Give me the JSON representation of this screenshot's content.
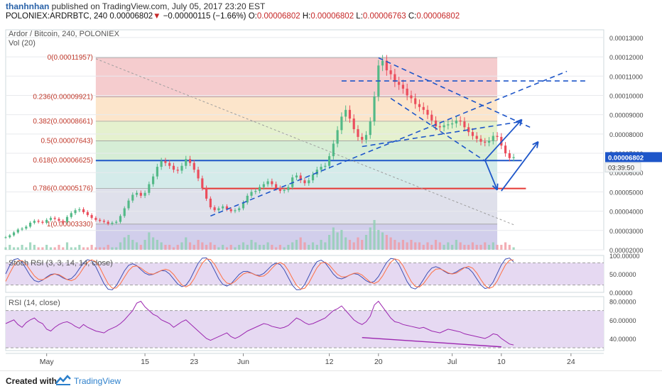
{
  "header": {
    "author": "thanhnhan",
    "published": "published on TradingView.com, July 05, 2017 23:20 EST",
    "symbol": "POLONIEX:ARDRBTC, 240",
    "last": "0.00006802",
    "down_arrow": "▼",
    "change": "−0.00000115 (−1.66%)",
    "o_label": "O:",
    "o_value": "0.00006802",
    "h_label": "H:",
    "h_value": "0.00006802",
    "l_label": "L:",
    "l_value": "0.00006763",
    "c_label": "C:",
    "c_value": "0.00006802"
  },
  "footer": {
    "created": "Created with",
    "brand": "TradingView"
  },
  "colors": {
    "up": "#53b987",
    "down": "#eb4d5c",
    "rsi": "#9c27b0",
    "stoch_k": "#3f51b5",
    "stoch_d": "#ff7043",
    "trend": "#1e56c9",
    "support": "#e53935",
    "price_tag": "#1e56c9"
  },
  "chart_data": [
    {
      "type": "candlestick",
      "title": "Ardor / Bitcoin, 240, POLONIEX",
      "indicator_label": "Vol (20)",
      "y_ticks": [
        "0.00013000",
        "0.00012000",
        "0.00011000",
        "0.00010000",
        "0.00009000",
        "0.00008000",
        "0.00007000",
        "0.00006000",
        "0.00005000",
        "0.00004000",
        "0.00003000",
        "0.00002000"
      ],
      "ylim": [
        2e-05,
        0.000134
      ],
      "price_label": "0.00006802",
      "countdown_label": "03:39:50",
      "x_ticks": [
        "May",
        "15",
        "23",
        "Jun",
        "12",
        "20",
        "Jul",
        "10",
        "24"
      ],
      "x_tick_index": [
        10,
        34,
        46,
        58,
        79,
        91,
        109,
        121,
        138
      ],
      "x_range": [
        0,
        146
      ],
      "fib_levels": [
        {
          "ratio": "0",
          "label": "0(0.00011957)",
          "price": 0.00011957
        },
        {
          "ratio": "0.236",
          "label": "0.236(0.00009921)",
          "price": 9.921e-05
        },
        {
          "ratio": "0.382",
          "label": "0.382(0.00008661)",
          "price": 8.661e-05
        },
        {
          "ratio": "0.5",
          "label": "0.5(0.00007643)",
          "price": 7.643e-05
        },
        {
          "ratio": "0.618",
          "label": "0.618(0.00006625)",
          "price": 6.625e-05
        },
        {
          "ratio": "0.786",
          "label": "0.786(0.00005176)",
          "price": 5.176e-05
        },
        {
          "ratio": "1",
          "label": "1(0.00003330)",
          "price": 3.33e-05
        }
      ],
      "price_series": [
        2.65e-05,
        2.75e-05,
        2.9e-05,
        3.05e-05,
        3.1e-05,
        3.2e-05,
        3.4e-05,
        3.5e-05,
        3.45e-05,
        3.4e-05,
        3.55e-05,
        3.65e-05,
        3.6e-05,
        3.5e-05,
        3.45e-05,
        3.7e-05,
        3.9e-05,
        4.05e-05,
        4.1e-05,
        3.95e-05,
        3.8e-05,
        3.65e-05,
        3.55e-05,
        3.5e-05,
        3.45e-05,
        3.35e-05,
        3.4e-05,
        3.45e-05,
        3.75e-05,
        4.15e-05,
        4.55e-05,
        4.85e-05,
        4.95e-05,
        4.8e-05,
        4.95e-05,
        5.4e-05,
        5.8e-05,
        6.3e-05,
        6.6e-05,
        6.5e-05,
        6.35e-05,
        6.15e-05,
        6.1e-05,
        6.35e-05,
        6.7e-05,
        6.5e-05,
        6.15e-05,
        5.7e-05,
        5.2e-05,
        4.65e-05,
        4.2e-05,
        4.05e-05,
        4.15e-05,
        4.25e-05,
        4.1e-05,
        4e-05,
        4.05e-05,
        4.15e-05,
        4.45e-05,
        4.8e-05,
        5e-05,
        5.05e-05,
        5.25e-05,
        5.4e-05,
        5.55e-05,
        5.4e-05,
        5.2e-05,
        5.05e-05,
        5.1e-05,
        5.25e-05,
        5.75e-05,
        5.85e-05,
        5.6e-05,
        5.45e-05,
        5.6e-05,
        5.9e-05,
        6.15e-05,
        6.3e-05,
        6.35e-05,
        6.85e-05,
        7.5e-05,
        8.2e-05,
        8.9e-05,
        9.25e-05,
        8.8e-05,
        8.25e-05,
        7.85e-05,
        7.7e-05,
        7.95e-05,
        8.65e-05,
        9.95e-05,
        0.0001155,
        0.000118,
        0.000113,
        0.000111,
        0.000107,
        0.0001055,
        0.0001035,
        0.0001,
        9.85e-05,
        9.55e-05,
        9.4e-05,
        9.25e-05,
        9e-05,
        8.7e-05,
        8.4e-05,
        8.35e-05,
        8.45e-05,
        8.5e-05,
        8.55e-05,
        8.7e-05,
        8.65e-05,
        8.35e-05,
        8.1e-05,
        7.9e-05,
        7.75e-05,
        7.6e-05,
        7.55e-05,
        7.65e-05,
        7.9e-05,
        7.85e-05,
        7.4e-05,
        7e-05,
        6.75e-05,
        6.8e-05
      ],
      "volume_series": [
        1,
        2,
        1,
        1,
        2,
        1,
        3,
        2,
        1,
        1,
        2,
        1,
        1,
        2,
        1,
        3,
        1,
        1,
        2,
        1,
        1,
        2,
        1,
        1,
        1,
        2,
        1,
        1,
        3,
        5,
        6,
        4,
        3,
        2,
        4,
        7,
        5,
        4,
        3,
        2,
        2,
        1,
        2,
        3,
        5,
        3,
        2,
        4,
        3,
        2,
        3,
        2,
        1,
        2,
        1,
        2,
        1,
        2,
        3,
        2,
        4,
        3,
        2,
        2,
        3,
        2,
        1,
        2,
        1,
        2,
        3,
        4,
        5,
        3,
        2,
        3,
        2,
        4,
        3,
        6,
        9,
        7,
        8,
        5,
        4,
        3,
        5,
        4,
        6,
        9,
        12,
        8,
        7,
        6,
        5,
        4,
        3,
        4,
        3,
        4,
        3,
        3,
        2,
        3,
        2,
        4,
        3,
        2,
        3,
        2,
        4,
        3,
        2,
        2,
        3,
        2,
        2,
        3,
        2,
        3,
        2,
        2,
        3,
        2,
        1
      ]
    },
    {
      "type": "line",
      "title": "Stoch RSI (3, 3, 14, 14, close)",
      "y_ticks": [
        "100.00000",
        "50.00000",
        "0.00000"
      ],
      "ylim": [
        0,
        100
      ],
      "bands": [
        20,
        80
      ]
    },
    {
      "type": "line",
      "title": "RSI (14, close)",
      "y_ticks": [
        "80.00000",
        "60.00000",
        "40.00000"
      ],
      "ylim": [
        27,
        85
      ],
      "bands": [
        30,
        70
      ],
      "series": [
        {
          "values": [
            56,
            58,
            60,
            55,
            52,
            57,
            60,
            62,
            58,
            56,
            50,
            48,
            52,
            55,
            57,
            58,
            56,
            53,
            51,
            55,
            52,
            50,
            48,
            47,
            46,
            49,
            51,
            53,
            56,
            60,
            65,
            70,
            78,
            80,
            74,
            70,
            66,
            64,
            60,
            58,
            56,
            52,
            55,
            58,
            60,
            56,
            52,
            48,
            44,
            40,
            38,
            40,
            42,
            44,
            46,
            42,
            40,
            42,
            45,
            48,
            50,
            52,
            54,
            56,
            55,
            53,
            52,
            51,
            52,
            54,
            58,
            62,
            60,
            57,
            55,
            56,
            58,
            60,
            62,
            66,
            70,
            72,
            75,
            70,
            65,
            60,
            57,
            55,
            58,
            64,
            76,
            80,
            74,
            68,
            62,
            58,
            57,
            55,
            54,
            53,
            52,
            51,
            52,
            50,
            48,
            47,
            46,
            48,
            50,
            49,
            48,
            47,
            45,
            44,
            43,
            42,
            41,
            40,
            42,
            45,
            44,
            40,
            37,
            34,
            33
          ]
        }
      ]
    }
  ]
}
